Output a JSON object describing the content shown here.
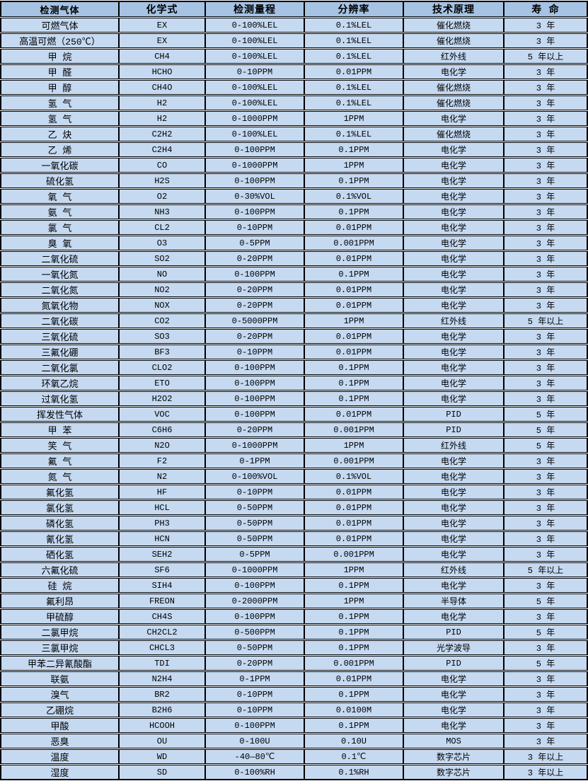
{
  "colors": {
    "header_bg": "#a6c3e4",
    "row_bg": "#c5d9f1",
    "border": "#000000",
    "text": "#000000"
  },
  "table": {
    "columns": [
      "检测气体",
      "化学式",
      "检测量程",
      "分辨率",
      "技术原理",
      "寿 命"
    ],
    "rows": [
      [
        "可燃气体",
        "EX",
        "0-100%LEL",
        "0.1%LEL",
        "催化燃烧",
        "3 年"
      ],
      [
        "高温可燃（250℃）",
        "EX",
        "0-100%LEL",
        "0.1%LEL",
        "催化燃烧",
        "3 年"
      ],
      [
        "甲 烷",
        "CH4",
        "0-100%LEL",
        "0.1%LEL",
        "红外线",
        "5 年以上"
      ],
      [
        "甲 醛",
        "HCHO",
        "0-10PPM",
        "0.01PPM",
        "电化学",
        "3 年"
      ],
      [
        "甲 醇",
        "CH4O",
        "0-100%LEL",
        "0.1%LEL",
        "催化燃烧",
        "3 年"
      ],
      [
        "氢 气",
        "H2",
        "0-100%LEL",
        "0.1%LEL",
        "催化燃烧",
        "3 年"
      ],
      [
        "氢 气",
        "H2",
        "0-1000PPM",
        "1PPM",
        "电化学",
        "3 年"
      ],
      [
        "乙 炔",
        "C2H2",
        "0-100%LEL",
        "0.1%LEL",
        "催化燃烧",
        "3 年"
      ],
      [
        "乙 烯",
        "C2H4",
        "0-100PPM",
        "0.1PPM",
        "电化学",
        "3 年"
      ],
      [
        "一氧化碳",
        "CO",
        "0-1000PPM",
        "1PPM",
        "电化学",
        "3 年"
      ],
      [
        "硫化氢",
        "H2S",
        "0-100PPM",
        "0.1PPM",
        "电化学",
        "3 年"
      ],
      [
        "氧 气",
        "O2",
        "0-30%VOL",
        "0.1%VOL",
        "电化学",
        "3 年"
      ],
      [
        "氨 气",
        "NH3",
        "0-100PPM",
        "0.1PPM",
        "电化学",
        "3 年"
      ],
      [
        "氯 气",
        "CL2",
        "0-10PPM",
        "0.01PPM",
        "电化学",
        "3 年"
      ],
      [
        "臭 氧",
        "O3",
        "0-5PPM",
        "0.001PPM",
        "电化学",
        "3 年"
      ],
      [
        "二氧化硫",
        "SO2",
        "0-20PPM",
        "0.01PPM",
        "电化学",
        "3 年"
      ],
      [
        "一氧化氮",
        "NO",
        "0-100PPM",
        "0.1PPM",
        "电化学",
        "3 年"
      ],
      [
        "二氧化氮",
        "NO2",
        "0-20PPM",
        "0.01PPM",
        "电化学",
        "3 年"
      ],
      [
        "氮氧化物",
        "NOX",
        "0-20PPM",
        "0.01PPM",
        "电化学",
        "3 年"
      ],
      [
        "二氧化碳",
        "CO2",
        "0-5000PPM",
        "1PPM",
        "红外线",
        "5 年以上"
      ],
      [
        "三氧化硫",
        "SO3",
        "0-20PPM",
        "0.01PPM",
        "电化学",
        "3 年"
      ],
      [
        "三氟化硼",
        "BF3",
        "0-10PPM",
        "0.01PPM",
        "电化学",
        "3 年"
      ],
      [
        "二氧化氯",
        "CLO2",
        "0-100PPM",
        "0.1PPM",
        "电化学",
        "3 年"
      ],
      [
        "环氧乙烷",
        "ETO",
        "0-100PPM",
        "0.1PPM",
        "电化学",
        "3 年"
      ],
      [
        "过氧化氢",
        "H2O2",
        "0-100PPM",
        "0.1PPM",
        "电化学",
        "3 年"
      ],
      [
        "挥发性气体",
        "VOC",
        "0-100PPM",
        "0.01PPM",
        "PID",
        "5 年"
      ],
      [
        "甲 苯",
        "C6H6",
        "0-20PPM",
        "0.001PPM",
        "PID",
        "5 年"
      ],
      [
        "笑 气",
        "N2O",
        "0-1000PPM",
        "1PPM",
        "红外线",
        "5 年"
      ],
      [
        "氟 气",
        "F2",
        "0-1PPM",
        "0.001PPM",
        "电化学",
        "3 年"
      ],
      [
        "氮 气",
        "N2",
        "0-100%VOL",
        "0.1%VOL",
        "电化学",
        "3 年"
      ],
      [
        "氟化氢",
        "HF",
        "0-10PPM",
        "0.01PPM",
        "电化学",
        "3 年"
      ],
      [
        "氯化氢",
        "HCL",
        "0-50PPM",
        "0.01PPM",
        "电化学",
        "3 年"
      ],
      [
        "磷化氢",
        "PH3",
        "0-50PPM",
        "0.01PPM",
        "电化学",
        "3 年"
      ],
      [
        "氰化氢",
        "HCN",
        "0-50PPM",
        "0.01PPM",
        "电化学",
        "3 年"
      ],
      [
        "硒化氢",
        "SEH2",
        "0-5PPM",
        "0.001PPM",
        "电化学",
        "3 年"
      ],
      [
        "六氟化硫",
        "SF6",
        "0-1000PPM",
        "1PPM",
        "红外线",
        "5 年以上"
      ],
      [
        "硅 烷",
        "SIH4",
        "0-100PPM",
        "0.1PPM",
        "电化学",
        "3 年"
      ],
      [
        "氟利昂",
        "FREON",
        "0-2000PPM",
        "1PPM",
        "半导体",
        "5 年"
      ],
      [
        "甲硫醇",
        "CH4S",
        "0-100PPM",
        "0.1PPM",
        "电化学",
        "3 年"
      ],
      [
        "二氯甲烷",
        "CH2CL2",
        "0-500PPM",
        "0.1PPM",
        "PID",
        "5 年"
      ],
      [
        "三氯甲烷",
        "CHCL3",
        "0-50PPM",
        "0.1PPM",
        "光学波导",
        "3 年"
      ],
      [
        "甲苯二异氰酸酯",
        "TDI",
        "0-20PPM",
        "0.001PPM",
        "PID",
        "5 年"
      ],
      [
        "联氨",
        "N2H4",
        "0-1PPM",
        "0.01PPM",
        "电化学",
        "3 年"
      ],
      [
        "溴气",
        "BR2",
        "0-10PPM",
        "0.1PPM",
        "电化学",
        "3 年"
      ],
      [
        "乙硼烷",
        "B2H6",
        "0-10PPM",
        "0.0100M",
        "电化学",
        "3 年"
      ],
      [
        "甲酸",
        "HCOOH",
        "0-100PPM",
        "0.1PPM",
        "电化学",
        "3 年"
      ],
      [
        "恶臭",
        "OU",
        "0-100U",
        "0.10U",
        "MOS",
        "3 年"
      ],
      [
        "温度",
        "WD",
        "-40—80℃",
        "0.1℃",
        "数字芯片",
        "3 年以上"
      ],
      [
        "湿度",
        "SD",
        "0-100%RH",
        "0.1%RH",
        "数字芯片",
        "3 年以上"
      ]
    ]
  }
}
